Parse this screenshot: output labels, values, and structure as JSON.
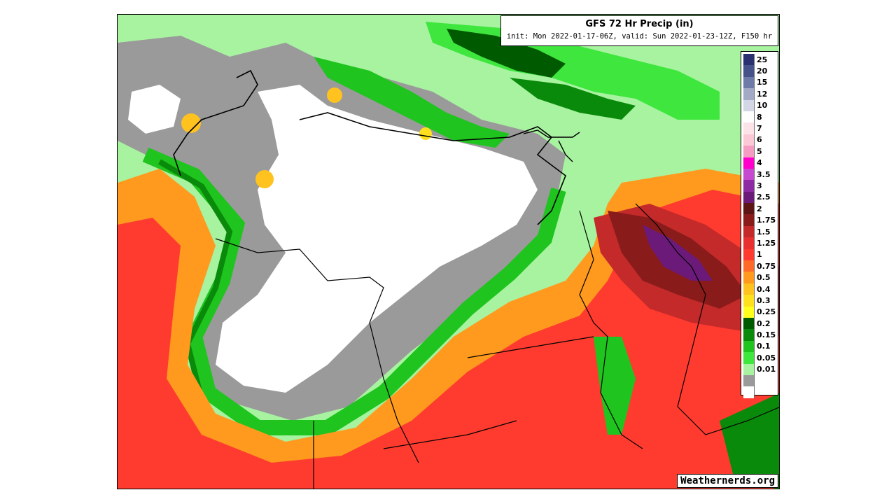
{
  "map": {
    "title": "GFS 72 Hr Precip (in)",
    "subtitle": "init: Mon 2022-01-17-06Z, valid: Sun 2022-01-23-12Z, F150 hr",
    "credit": "Weathernerds.org"
  },
  "legend": {
    "items": [
      {
        "label": "25",
        "color": "#2b3070"
      },
      {
        "label": "20",
        "color": "#46528a"
      },
      {
        "label": "15",
        "color": "#6e7aa8"
      },
      {
        "label": "12",
        "color": "#a3aac6"
      },
      {
        "label": "10",
        "color": "#d3d6e4"
      },
      {
        "label": "8",
        "color": "#ffffff"
      },
      {
        "label": "7",
        "color": "#fce3e8"
      },
      {
        "label": "6",
        "color": "#fbc9d6"
      },
      {
        "label": "5",
        "color": "#f59cc2"
      },
      {
        "label": "4",
        "color": "#ff00cc"
      },
      {
        "label": "3.5",
        "color": "#c64ad0"
      },
      {
        "label": "3",
        "color": "#8e2ba3"
      },
      {
        "label": "2.5",
        "color": "#6b1a7a"
      },
      {
        "label": "2",
        "color": "#5c1515"
      },
      {
        "label": "1.75",
        "color": "#8a1b1b"
      },
      {
        "label": "1.5",
        "color": "#c42a2a"
      },
      {
        "label": "1.25",
        "color": "#e83030"
      },
      {
        "label": "1",
        "color": "#ff3b2f"
      },
      {
        "label": "0.75",
        "color": "#ff6a2a"
      },
      {
        "label": "0.5",
        "color": "#ff9a1e"
      },
      {
        "label": "0.4",
        "color": "#ffc21e"
      },
      {
        "label": "0.3",
        "color": "#ffe01e"
      },
      {
        "label": "0.25",
        "color": "#ffff1e"
      },
      {
        "label": "0.2",
        "color": "#005a00"
      },
      {
        "label": "0.15",
        "color": "#0a8a0a"
      },
      {
        "label": "0.1",
        "color": "#1fc41f"
      },
      {
        "label": "0.05",
        "color": "#3ee63e"
      },
      {
        "label": "0.01",
        "color": "#a7f3a0"
      },
      {
        "label": "",
        "color": "#9a9a9a"
      },
      {
        "label": "",
        "color": "#ffffff"
      }
    ]
  }
}
